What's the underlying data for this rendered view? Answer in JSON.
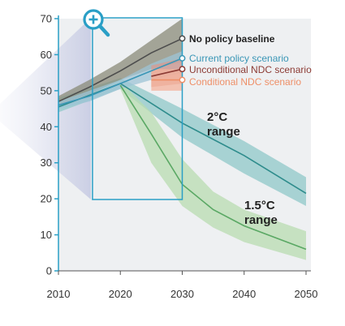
{
  "chart_data": {
    "type": "line",
    "x_ticks": [
      "2010",
      "2020",
      "2030",
      "2040",
      "2050"
    ],
    "y_ticks": [
      "0",
      "10",
      "20",
      "30",
      "40",
      "50",
      "60",
      "70"
    ],
    "xlim": [
      2010,
      2050
    ],
    "ylim": [
      0,
      70
    ],
    "grid": false,
    "series": [
      {
        "name": "No policy baseline",
        "color": "#4d4d4d",
        "band_color": "#8a8b78",
        "x": [
          2010,
          2015,
          2020,
          2025,
          2030
        ],
        "values": [
          47,
          51,
          55.5,
          60.5,
          64.5
        ],
        "lower": [
          46,
          49,
          53,
          56,
          58
        ],
        "upper": [
          48.5,
          53,
          58,
          64,
          70
        ]
      },
      {
        "name": "Current policy scenario",
        "color": "#3a96b6",
        "band_color": "#9ec4d6",
        "x": [
          2010,
          2015,
          2020,
          2025,
          2030
        ],
        "values": [
          46,
          48.5,
          52,
          55.5,
          59
        ],
        "lower": [
          45,
          47,
          50.5,
          53,
          55
        ],
        "upper": [
          47,
          50,
          53,
          57.5,
          61
        ]
      },
      {
        "name": "Unconditional NDC scenario",
        "color": "#8c3b34",
        "band_color": "#d99a8f",
        "x": [
          2025,
          2030
        ],
        "values": [
          54,
          56
        ],
        "lower": [
          51,
          52
        ],
        "upper": [
          57,
          59
        ]
      },
      {
        "name": "Conditional NDC scenario",
        "color": "#ee8f68",
        "band_color": "#f4b39c",
        "x": [
          2025,
          2030
        ],
        "values": [
          53,
          53
        ],
        "lower": [
          50,
          50
        ],
        "upper": [
          56,
          56
        ]
      },
      {
        "name": "2°C range",
        "color": "#2e8c8c",
        "band_color": "#8fc8c8",
        "x": [
          2010,
          2020,
          2030,
          2040,
          2050
        ],
        "values": [
          45.5,
          52,
          41,
          32,
          21.5
        ],
        "lower": [
          44,
          50.5,
          37,
          27,
          18
        ],
        "upper": [
          48,
          53.5,
          45,
          36,
          26
        ]
      },
      {
        "name": "1.5°C range",
        "color": "#5aa864",
        "band_color": "#b8dcb0",
        "x": [
          2020,
          2025,
          2030,
          2035,
          2040,
          2050
        ],
        "values": [
          51.5,
          38,
          24,
          17,
          12.5,
          6
        ],
        "lower": [
          50.5,
          30,
          18,
          12,
          8,
          3
        ],
        "upper": [
          52.5,
          44,
          31,
          22,
          17,
          11
        ]
      }
    ],
    "labels": {
      "r2": [
        "2°C",
        "range"
      ],
      "r15": [
        "1.5°C",
        "range"
      ]
    },
    "zoom_window": {
      "x": [
        2015.5,
        2030
      ]
    },
    "zoom_icon": "magnifier-plus-icon",
    "colors": {
      "plot_background": "#eef0f2",
      "zoom_frame": "#2a9fc6",
      "axis": "#2a9fc6"
    }
  }
}
